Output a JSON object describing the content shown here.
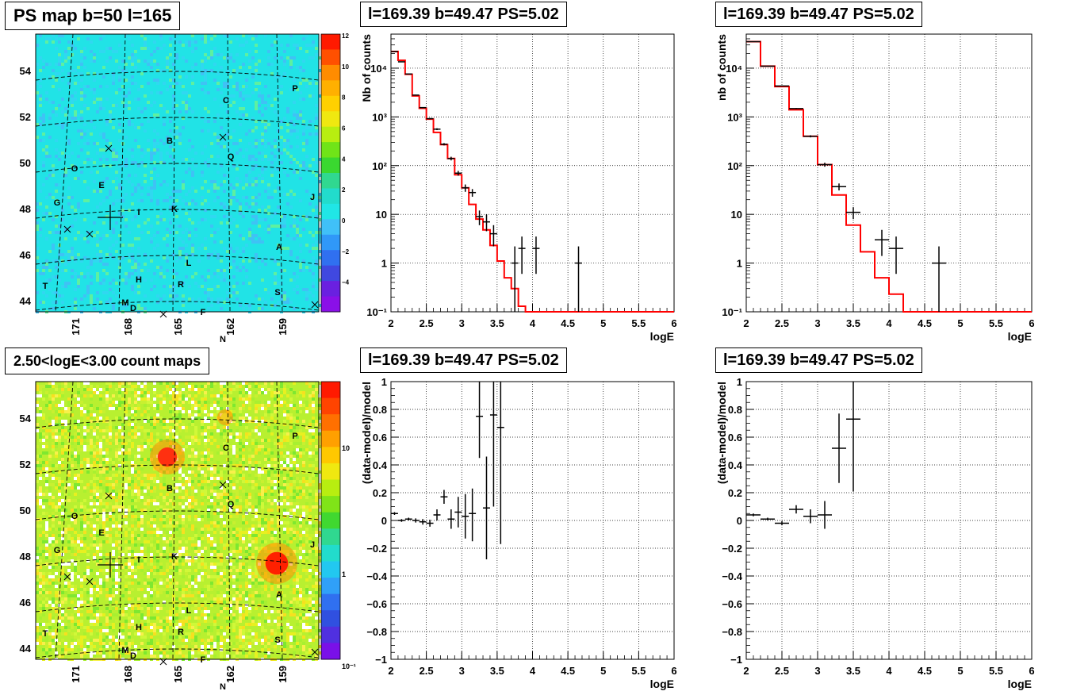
{
  "colors": {
    "frame": "#000000",
    "grid": "#000000",
    "model_line": "#ff0000",
    "data_marker": "#000000",
    "map_background": "#1fe6e6"
  },
  "maps": [
    {
      "title": "PS map b=50 l=165",
      "type": "heatmap",
      "y_ticks": [
        "54",
        "52",
        "50",
        "48",
        "46",
        "44"
      ],
      "x_ticks": [
        "171",
        "168",
        "165",
        "162",
        "159"
      ],
      "colorbar_ticks": [
        "12",
        "10",
        "8",
        "6",
        "4",
        "2",
        "0",
        "-2",
        "-4"
      ],
      "sources": [
        "P",
        "C",
        "B",
        "Q",
        "O",
        "E",
        "G",
        "I",
        "K",
        "J",
        "A",
        "L",
        "H",
        "R",
        "T",
        "S",
        "M",
        "D",
        "F",
        "N"
      ]
    },
    {
      "title": "2.50<logE<3.00 count maps",
      "type": "heatmap",
      "y_ticks": [
        "54",
        "52",
        "50",
        "48",
        "46",
        "44"
      ],
      "x_ticks": [
        "171",
        "168",
        "165",
        "162",
        "159"
      ],
      "colorbar_ticks": [
        "10",
        "1",
        "10⁻¹"
      ],
      "sources": [
        "P",
        "C",
        "B",
        "Q",
        "O",
        "E",
        "G",
        "I",
        "K",
        "J",
        "A",
        "L",
        "H",
        "R",
        "T",
        "S",
        "M",
        "D",
        "F",
        "N"
      ]
    }
  ],
  "chart_data": [
    {
      "id": "spec1",
      "type": "line",
      "log_y": true,
      "title": "l=169.39 b=49.47 PS=5.02",
      "xlabel": "logE",
      "ylabel": "Nb of counts",
      "xlim": [
        2,
        6
      ],
      "ylim": [
        0.1,
        50000
      ],
      "x_ticks": [
        "2",
        "2.5",
        "3",
        "3.5",
        "4",
        "4.5",
        "5",
        "5.5",
        "6"
      ],
      "y_ticks": [
        "10⁴",
        "10³",
        "10²",
        "10",
        "1",
        "10⁻¹"
      ],
      "model_step": {
        "edges": [
          2,
          2.1,
          2.2,
          2.3,
          2.4,
          2.5,
          2.6,
          2.7,
          2.8,
          2.9,
          3,
          3.1,
          3.2,
          3.3,
          3.4,
          3.5,
          3.6,
          3.7,
          3.8,
          3.9,
          4,
          4.1,
          4.2,
          6
        ],
        "values": [
          22000,
          14500,
          7500,
          2700,
          1500,
          900,
          480,
          270,
          140,
          65,
          35,
          16,
          8,
          4.8,
          2.3,
          1.1,
          0.5,
          0.3,
          0.13,
          0.1,
          0.1,
          0.1,
          0.1
        ]
      },
      "data_points": [
        {
          "x": 2.05,
          "y": 22000,
          "ylo": 21700,
          "yhi": 22300,
          "xerr": 0.05
        },
        {
          "x": 2.15,
          "y": 13500,
          "ylo": 13300,
          "yhi": 13700,
          "xerr": 0.05
        },
        {
          "x": 2.25,
          "y": 7600,
          "ylo": 7500,
          "yhi": 7700,
          "xerr": 0.05
        },
        {
          "x": 2.35,
          "y": 2800,
          "ylo": 2750,
          "yhi": 2850,
          "xerr": 0.05
        },
        {
          "x": 2.45,
          "y": 1550,
          "ylo": 1510,
          "yhi": 1590,
          "xerr": 0.05
        },
        {
          "x": 2.55,
          "y": 920,
          "ylo": 890,
          "yhi": 950,
          "xerr": 0.05
        },
        {
          "x": 2.65,
          "y": 560,
          "ylo": 535,
          "yhi": 585,
          "xerr": 0.05
        },
        {
          "x": 2.75,
          "y": 275,
          "ylo": 260,
          "yhi": 290,
          "xerr": 0.05
        },
        {
          "x": 2.85,
          "y": 140,
          "ylo": 128,
          "yhi": 152,
          "xerr": 0.05
        },
        {
          "x": 2.95,
          "y": 70,
          "ylo": 62,
          "yhi": 78,
          "xerr": 0.05
        },
        {
          "x": 3.05,
          "y": 35,
          "ylo": 29,
          "yhi": 41,
          "xerr": 0.05
        },
        {
          "x": 3.15,
          "y": 28,
          "ylo": 23,
          "yhi": 33,
          "xerr": 0.05
        },
        {
          "x": 3.25,
          "y": 9,
          "ylo": 6,
          "yhi": 12,
          "xerr": 0.05
        },
        {
          "x": 3.35,
          "y": 7,
          "ylo": 4.5,
          "yhi": 10,
          "xerr": 0.05
        },
        {
          "x": 3.45,
          "y": 4,
          "ylo": 2.2,
          "yhi": 6,
          "xerr": 0.05
        },
        {
          "x": 3.75,
          "y": 1,
          "ylo": 0.1,
          "yhi": 2.2,
          "xerr": 0.05
        },
        {
          "x": 3.85,
          "y": 2,
          "ylo": 0.6,
          "yhi": 3.5,
          "xerr": 0.05
        },
        {
          "x": 4.05,
          "y": 2,
          "ylo": 0.6,
          "yhi": 3.5,
          "xerr": 0.05
        },
        {
          "x": 4.65,
          "y": 1,
          "ylo": 0.1,
          "yhi": 2.2,
          "xerr": 0.05
        }
      ]
    },
    {
      "id": "spec2",
      "type": "line",
      "log_y": true,
      "title": "l=169.39 b=49.47 PS=5.02",
      "xlabel": "logE",
      "ylabel": "nb of counts",
      "xlim": [
        2,
        6
      ],
      "ylim": [
        0.1,
        50000
      ],
      "x_ticks": [
        "2",
        "2.5",
        "3",
        "3.5",
        "4",
        "4.5",
        "5",
        "5.5",
        "6"
      ],
      "y_ticks": [
        "10⁴",
        "10³",
        "10²",
        "10",
        "1",
        "10⁻¹"
      ],
      "model_step": {
        "edges": [
          2,
          2.2,
          2.4,
          2.6,
          2.8,
          3,
          3.2,
          3.4,
          3.6,
          3.8,
          4,
          4.2,
          4.4,
          6
        ],
        "values": [
          35000,
          11000,
          4200,
          1400,
          400,
          105,
          25,
          6,
          1.7,
          0.5,
          0.23,
          0.1,
          0.1
        ]
      },
      "data_points": [
        {
          "x": 2.1,
          "y": 35000,
          "ylo": 34800,
          "yhi": 35200,
          "xerr": 0.1
        },
        {
          "x": 2.3,
          "y": 11000,
          "ylo": 10900,
          "yhi": 11100,
          "xerr": 0.1
        },
        {
          "x": 2.5,
          "y": 4300,
          "ylo": 4240,
          "yhi": 4360,
          "xerr": 0.1
        },
        {
          "x": 2.7,
          "y": 1480,
          "ylo": 1440,
          "yhi": 1520,
          "xerr": 0.1
        },
        {
          "x": 2.9,
          "y": 400,
          "ylo": 380,
          "yhi": 420,
          "xerr": 0.1
        },
        {
          "x": 3.1,
          "y": 105,
          "ylo": 95,
          "yhi": 115,
          "xerr": 0.1
        },
        {
          "x": 3.3,
          "y": 37,
          "ylo": 31,
          "yhi": 43,
          "xerr": 0.1
        },
        {
          "x": 3.5,
          "y": 11,
          "ylo": 8,
          "yhi": 14,
          "xerr": 0.1
        },
        {
          "x": 3.9,
          "y": 3,
          "ylo": 1.4,
          "yhi": 4.8,
          "xerr": 0.1
        },
        {
          "x": 4.1,
          "y": 2,
          "ylo": 0.6,
          "yhi": 3.5,
          "xerr": 0.1
        },
        {
          "x": 4.7,
          "y": 1,
          "ylo": 0.1,
          "yhi": 2.2,
          "xerr": 0.1
        }
      ]
    },
    {
      "id": "res1",
      "type": "scatter",
      "log_y": false,
      "title": "l=169.39 b=49.47 PS=5.02",
      "xlabel": "logE",
      "ylabel": "(data-model)/model",
      "xlim": [
        2,
        6
      ],
      "ylim": [
        -1,
        1
      ],
      "x_ticks": [
        "2",
        "2.5",
        "3",
        "3.5",
        "4",
        "4.5",
        "5",
        "5.5",
        "6"
      ],
      "y_ticks": [
        "1",
        "0.8",
        "0.6",
        "0.4",
        "0.2",
        "0",
        "-0.2",
        "-0.4",
        "-0.6",
        "-0.8",
        "-1"
      ],
      "data_points": [
        {
          "x": 2.05,
          "y": 0.05,
          "ylo": 0.04,
          "yhi": 0.06,
          "xerr": 0.05
        },
        {
          "x": 2.15,
          "y": 0.0,
          "ylo": -0.01,
          "yhi": 0.01,
          "xerr": 0.05
        },
        {
          "x": 2.25,
          "y": 0.01,
          "ylo": 0.0,
          "yhi": 0.02,
          "xerr": 0.05
        },
        {
          "x": 2.35,
          "y": 0.0,
          "ylo": -0.015,
          "yhi": 0.015,
          "xerr": 0.05
        },
        {
          "x": 2.45,
          "y": -0.01,
          "ylo": -0.03,
          "yhi": 0.01,
          "xerr": 0.05
        },
        {
          "x": 2.55,
          "y": -0.02,
          "ylo": -0.045,
          "yhi": 0.005,
          "xerr": 0.05
        },
        {
          "x": 2.65,
          "y": 0.04,
          "ylo": 0.0,
          "yhi": 0.08,
          "xerr": 0.05
        },
        {
          "x": 2.75,
          "y": 0.17,
          "ylo": 0.12,
          "yhi": 0.22,
          "xerr": 0.05
        },
        {
          "x": 2.85,
          "y": 0.01,
          "ylo": -0.06,
          "yhi": 0.08,
          "xerr": 0.05
        },
        {
          "x": 2.95,
          "y": 0.06,
          "ylo": -0.05,
          "yhi": 0.17,
          "xerr": 0.05
        },
        {
          "x": 3.05,
          "y": 0.03,
          "ylo": -0.13,
          "yhi": 0.19,
          "xerr": 0.05
        },
        {
          "x": 3.15,
          "y": 0.05,
          "ylo": -0.15,
          "yhi": 0.23,
          "xerr": 0.05
        },
        {
          "x": 3.25,
          "y": 0.75,
          "ylo": 0.45,
          "yhi": 1.0,
          "xerr": 0.05
        },
        {
          "x": 3.35,
          "y": 0.09,
          "ylo": -0.28,
          "yhi": 0.46,
          "xerr": 0.05
        },
        {
          "x": 3.45,
          "y": 0.76,
          "ylo": 0.1,
          "yhi": 1.0,
          "xerr": 0.05
        },
        {
          "x": 3.55,
          "y": 0.67,
          "ylo": -0.17,
          "yhi": 1.0,
          "xerr": 0.05
        }
      ]
    },
    {
      "id": "res2",
      "type": "scatter",
      "log_y": false,
      "title": "l=169.39 b=49.47 PS=5.02",
      "xlabel": "logE",
      "ylabel": "(data-model)/model",
      "xlim": [
        2,
        6
      ],
      "ylim": [
        -1,
        1
      ],
      "x_ticks": [
        "2",
        "2.5",
        "3",
        "3.5",
        "4",
        "4.5",
        "5",
        "5.5",
        "6"
      ],
      "y_ticks": [
        "1",
        "0.8",
        "0.6",
        "0.4",
        "0.2",
        "0",
        "-0.2",
        "-0.4",
        "-0.6",
        "-0.8",
        "-1"
      ],
      "data_points": [
        {
          "x": 2.1,
          "y": 0.04,
          "ylo": 0.03,
          "yhi": 0.05,
          "xerr": 0.1
        },
        {
          "x": 2.3,
          "y": 0.01,
          "ylo": 0.0,
          "yhi": 0.02,
          "xerr": 0.1
        },
        {
          "x": 2.5,
          "y": -0.02,
          "ylo": -0.035,
          "yhi": -0.005,
          "xerr": 0.1
        },
        {
          "x": 2.7,
          "y": 0.08,
          "ylo": 0.05,
          "yhi": 0.11,
          "xerr": 0.1
        },
        {
          "x": 2.9,
          "y": 0.03,
          "ylo": -0.02,
          "yhi": 0.08,
          "xerr": 0.1
        },
        {
          "x": 3.1,
          "y": 0.04,
          "ylo": -0.06,
          "yhi": 0.14,
          "xerr": 0.1
        },
        {
          "x": 3.3,
          "y": 0.52,
          "ylo": 0.27,
          "yhi": 0.77,
          "xerr": 0.1
        },
        {
          "x": 3.5,
          "y": 0.73,
          "ylo": 0.21,
          "yhi": 1.0,
          "xerr": 0.1
        }
      ]
    }
  ]
}
